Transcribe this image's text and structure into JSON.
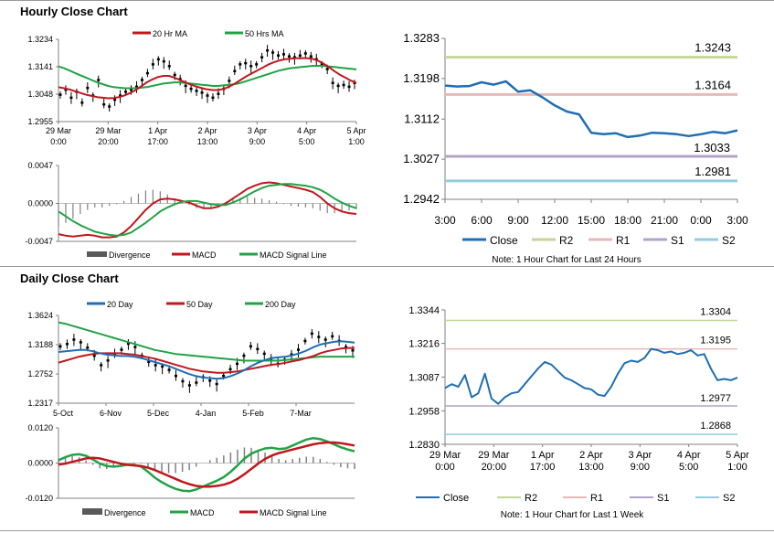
{
  "sections": {
    "hourly_title": "Hourly Close Chart",
    "daily_title": "Daily Close Chart"
  },
  "colors": {
    "ma_short": "#c0171d",
    "ma_long": "#21a345",
    "close_blue": "#1f6eb5",
    "r2": "#c3d69b",
    "r1": "#e6b9b8",
    "s1": "#b3a2c7",
    "s2": "#93cddd",
    "divergence": "#808080",
    "candle": "#000000"
  },
  "chart_data": [
    {
      "id": "hourly_price",
      "type": "line",
      "legend": [
        "20 Hr MA",
        "50 Hrs MA"
      ],
      "yticks": [
        "1.3234",
        "1.3141",
        "1.3048",
        "1.2955"
      ],
      "ylim": [
        1.2955,
        1.3234
      ],
      "xticks": [
        [
          "29 Mar",
          "0:00"
        ],
        [
          "29 Mar",
          "20:00"
        ],
        [
          "1 Apr",
          "17:00"
        ],
        [
          "2 Apr",
          "13:00"
        ],
        [
          "3 Apr",
          "9:00"
        ],
        [
          "4 Apr",
          "5:00"
        ],
        [
          "5 Apr",
          "1:00"
        ]
      ],
      "price": [
        1.3045,
        1.3062,
        1.3035,
        1.3055,
        1.3018,
        1.3068,
        1.3042,
        1.3095,
        1.3012,
        1.3005,
        1.3028,
        1.3042,
        1.3055,
        1.3062,
        1.3072,
        1.3095,
        1.3118,
        1.3148,
        1.3165,
        1.3158,
        1.3142,
        1.3112,
        1.3098,
        1.3075,
        1.3065,
        1.3058,
        1.3052,
        1.3042,
        1.3035,
        1.3048,
        1.3065,
        1.3092,
        1.3125,
        1.3148,
        1.3152,
        1.3142,
        1.3148,
        1.3172,
        1.3195,
        1.3188,
        1.3178,
        1.3182,
        1.3175,
        1.3172,
        1.3178,
        1.3185,
        1.3175,
        1.3165,
        1.3148,
        1.3132,
        1.3085,
        1.3075,
        1.3078,
        1.3072,
        1.3085
      ],
      "ma20": [
        1.3072,
        1.3068,
        1.3064,
        1.3058,
        1.3052,
        1.3046,
        1.3042,
        1.3038,
        1.3036,
        1.3034,
        1.3035,
        1.3038,
        1.3044,
        1.3052,
        1.3062,
        1.3075,
        1.3088,
        1.3098,
        1.3106,
        1.311,
        1.311,
        1.3104,
        1.3096,
        1.3088,
        1.308,
        1.3074,
        1.3068,
        1.3064,
        1.3062,
        1.3062,
        1.3066,
        1.3074,
        1.3084,
        1.3096,
        1.3108,
        1.3118,
        1.3128,
        1.3138,
        1.3148,
        1.3156,
        1.3162,
        1.3166,
        1.3168,
        1.317,
        1.317,
        1.317,
        1.3168,
        1.3162,
        1.3152,
        1.314,
        1.3126,
        1.3114,
        1.3104,
        1.3094,
        1.3086
      ],
      "ma50": [
        1.3142,
        1.3136,
        1.3128,
        1.312,
        1.3112,
        1.3104,
        1.3096,
        1.3088,
        1.3082,
        1.3076,
        1.3072,
        1.307,
        1.3068,
        1.3068,
        1.3068,
        1.307,
        1.3072,
        1.3076,
        1.308,
        1.3084,
        1.3086,
        1.3088,
        1.3088,
        1.3086,
        1.3084,
        1.3082,
        1.308,
        1.3078,
        1.3076,
        1.3076,
        1.3078,
        1.308,
        1.3082,
        1.3086,
        1.3092,
        1.3098,
        1.3104,
        1.311,
        1.3116,
        1.3122,
        1.3128,
        1.3132,
        1.3136,
        1.3138,
        1.314,
        1.3142,
        1.3144,
        1.3144,
        1.3144,
        1.3142,
        1.314,
        1.3138,
        1.3136,
        1.3134,
        1.3132
      ]
    },
    {
      "id": "hourly_macd",
      "type": "line",
      "legend": [
        "Divergence",
        "MACD",
        "MACD Signal Line"
      ],
      "yticks": [
        "0.0047",
        "0.0000",
        "-0.0047"
      ],
      "ylim": [
        -0.0047,
        0.0047
      ],
      "macd": [
        -0.0038,
        -0.004,
        -0.0041,
        -0.004,
        -0.0039,
        -0.004,
        -0.0042,
        -0.0042,
        -0.0041,
        -0.0036,
        -0.0028,
        -0.0018,
        -0.0008,
        0.0,
        0.0005,
        0.0006,
        0.0005,
        0.0003,
        0.0001,
        -0.0003,
        -0.0006,
        -0.0006,
        -0.0004,
        0.0,
        0.0006,
        0.0012,
        0.0018,
        0.0022,
        0.0025,
        0.0026,
        0.0025,
        0.0023,
        0.0021,
        0.0019,
        0.0017,
        0.0014,
        0.0008,
        0.0,
        -0.0006,
        -0.001,
        -0.0012,
        -0.0013
      ],
      "signal": [
        -0.001,
        -0.0016,
        -0.0022,
        -0.0027,
        -0.0031,
        -0.0035,
        -0.0037,
        -0.0039,
        -0.004,
        -0.0039,
        -0.0036,
        -0.003,
        -0.0024,
        -0.0017,
        -0.001,
        -0.0005,
        -0.0001,
        0.0002,
        0.0003,
        0.0003,
        0.0001,
        -0.0001,
        -0.0002,
        -0.0002,
        0.0001,
        0.0005,
        0.001,
        0.0015,
        0.0019,
        0.0022,
        0.0023,
        0.0024,
        0.0024,
        0.0023,
        0.0022,
        0.002,
        0.0017,
        0.0012,
        0.0006,
        0.0001,
        -0.0003,
        -0.0006
      ]
    },
    {
      "id": "hourly_levels",
      "type": "line",
      "yticks": [
        "1.3283",
        "1.3198",
        "1.3112",
        "1.3027",
        "1.2942"
      ],
      "ylim": [
        1.2942,
        1.3283
      ],
      "xticks": [
        "3:00",
        "6:00",
        "9:00",
        "12:00",
        "15:00",
        "18:00",
        "21:00",
        "0:00",
        "3:00"
      ],
      "close": [
        1.3183,
        1.3181,
        1.3182,
        1.319,
        1.3185,
        1.3192,
        1.317,
        1.3173,
        1.3158,
        1.3141,
        1.3128,
        1.3122,
        1.3083,
        1.308,
        1.3082,
        1.3074,
        1.3077,
        1.3083,
        1.3082,
        1.308,
        1.3076,
        1.308,
        1.3085,
        1.3082,
        1.3088
      ],
      "levels": {
        "R2": 1.3243,
        "R1": 1.3164,
        "S1": 1.3033,
        "S2": 1.2981
      },
      "level_labels": {
        "R2": "1.3243",
        "R1": "1.3164",
        "S1": "1.3033",
        "S2": "1.2981"
      },
      "legend": [
        "Close",
        "R2",
        "R1",
        "S1",
        "S2"
      ],
      "note": "Note: 1 Hour Chart for Last 24 Hours"
    },
    {
      "id": "daily_price",
      "type": "line",
      "legend": [
        "20 Day",
        "50 Day",
        "200 Day"
      ],
      "yticks": [
        "1.3624",
        "1.3188",
        "1.2752",
        "1.2317"
      ],
      "ylim": [
        1.2317,
        1.3624
      ],
      "xticks": [
        "5-Oct",
        "6-Nov",
        "5-Dec",
        "4-Jan",
        "5-Feb",
        "7-Mar"
      ],
      "price": [
        1.316,
        1.3195,
        1.326,
        1.322,
        1.314,
        1.302,
        1.288,
        1.295,
        1.304,
        1.311,
        1.32,
        1.315,
        1.302,
        1.293,
        1.288,
        1.286,
        1.281,
        1.272,
        1.264,
        1.258,
        1.262,
        1.27,
        1.265,
        1.26,
        1.272,
        1.282,
        1.29,
        1.302,
        1.316,
        1.312,
        1.305,
        1.298,
        1.29,
        1.296,
        1.304,
        1.311,
        1.324,
        1.335,
        1.33,
        1.326,
        1.331,
        1.324,
        1.315,
        1.31
      ],
      "ma20": [
        1.308,
        1.309,
        1.31,
        1.311,
        1.311,
        1.309,
        1.306,
        1.304,
        1.303,
        1.302,
        1.302,
        1.301,
        1.299,
        1.296,
        1.293,
        1.29,
        1.287,
        1.283,
        1.279,
        1.275,
        1.272,
        1.27,
        1.269,
        1.268,
        1.269,
        1.272,
        1.276,
        1.281,
        1.287,
        1.292,
        1.296,
        1.299,
        1.3,
        1.301,
        1.303,
        1.306,
        1.31,
        1.315,
        1.319,
        1.321,
        1.323,
        1.324,
        1.323,
        1.322
      ],
      "ma50": [
        1.292,
        1.295,
        1.298,
        1.301,
        1.303,
        1.305,
        1.306,
        1.306,
        1.306,
        1.306,
        1.305,
        1.304,
        1.302,
        1.3,
        1.298,
        1.295,
        1.292,
        1.289,
        1.286,
        1.283,
        1.281,
        1.279,
        1.278,
        1.277,
        1.277,
        1.278,
        1.279,
        1.281,
        1.283,
        1.285,
        1.287,
        1.289,
        1.29,
        1.292,
        1.294,
        1.296,
        1.299,
        1.302,
        1.306,
        1.309,
        1.311,
        1.313,
        1.314,
        1.314
      ],
      "ma200": [
        1.352,
        1.35,
        1.347,
        1.344,
        1.341,
        1.338,
        1.335,
        1.332,
        1.329,
        1.326,
        1.323,
        1.32,
        1.317,
        1.314,
        1.311,
        1.309,
        1.307,
        1.305,
        1.304,
        1.303,
        1.302,
        1.301,
        1.3,
        1.299,
        1.298,
        1.297,
        1.296,
        1.295,
        1.295,
        1.295,
        1.295,
        1.295,
        1.295,
        1.296,
        1.297,
        1.298,
        1.299,
        1.3,
        1.301,
        1.301,
        1.301,
        1.301,
        1.301,
        1.301
      ]
    },
    {
      "id": "daily_macd",
      "type": "line",
      "legend": [
        "Divergence",
        "MACD",
        "MACD Signal Line"
      ],
      "yticks": [
        "0.0120",
        "0.0000",
        "-0.0120"
      ],
      "ylim": [
        -0.012,
        0.012
      ],
      "macd": [
        0.001,
        0.002,
        0.0028,
        0.003,
        0.0025,
        0.0012,
        -0.0002,
        -0.001,
        -0.0012,
        -0.001,
        -0.0006,
        -0.0006,
        -0.0012,
        -0.003,
        -0.005,
        -0.0065,
        -0.0078,
        -0.0088,
        -0.0094,
        -0.0096,
        -0.009,
        -0.008,
        -0.007,
        -0.006,
        -0.0048,
        -0.003,
        -0.0008,
        0.0015,
        0.0032,
        0.0042,
        0.005,
        0.0052,
        0.0048,
        0.005,
        0.006,
        0.007,
        0.008,
        0.0085,
        0.0082,
        0.0074,
        0.0064,
        0.0054,
        0.0046,
        0.004
      ],
      "signal": [
        -0.0005,
        -0.0002,
        0.0004,
        0.001,
        0.0016,
        0.0018,
        0.0016,
        0.001,
        0.0004,
        -0.0002,
        -0.0006,
        -0.0008,
        -0.001,
        -0.0016,
        -0.0024,
        -0.0034,
        -0.0044,
        -0.0054,
        -0.0064,
        -0.0072,
        -0.0078,
        -0.008,
        -0.008,
        -0.0078,
        -0.0074,
        -0.0066,
        -0.0054,
        -0.0038,
        -0.002,
        -0.0002,
        0.0014,
        0.0026,
        0.0034,
        0.004,
        0.0046,
        0.0052,
        0.0058,
        0.0064,
        0.0068,
        0.007,
        0.007,
        0.0068,
        0.0064,
        0.006
      ]
    },
    {
      "id": "daily_levels",
      "type": "line",
      "yticks": [
        "1.3344",
        "1.3216",
        "1.3087",
        "1.2958",
        "1.2830"
      ],
      "ylim": [
        1.283,
        1.3344
      ],
      "xticks": [
        [
          "29 Mar",
          "0:00"
        ],
        [
          "29 Mar",
          "20:00"
        ],
        [
          "1 Apr",
          "17:00"
        ],
        [
          "2 Apr",
          "13:00"
        ],
        [
          "3 Apr",
          "9:00"
        ],
        [
          "4 Apr",
          "5:00"
        ],
        [
          "5 Apr",
          "1:00"
        ]
      ],
      "close": [
        1.3045,
        1.306,
        1.305,
        1.3095,
        1.301,
        1.3025,
        1.31,
        1.3005,
        1.2985,
        1.301,
        1.3025,
        1.303,
        1.306,
        1.309,
        1.312,
        1.3145,
        1.3135,
        1.311,
        1.3085,
        1.3075,
        1.306,
        1.3045,
        1.304,
        1.302,
        1.3015,
        1.305,
        1.31,
        1.314,
        1.315,
        1.3145,
        1.316,
        1.3195,
        1.319,
        1.318,
        1.3185,
        1.3175,
        1.318,
        1.319,
        1.317,
        1.3175,
        1.312,
        1.3075,
        1.308,
        1.3075,
        1.3085
      ],
      "levels": {
        "R2": 1.3304,
        "R1": 1.3195,
        "S1": 1.2977,
        "S2": 1.2868
      },
      "level_labels": {
        "R2": "1.3304",
        "R1": "1.3195",
        "S1": "1.2977",
        "S2": "1.2868"
      },
      "legend": [
        "Close",
        "R2",
        "R1",
        "S1",
        "S2"
      ],
      "note": "Note: 1 Hour Chart for Last 1 Week"
    }
  ]
}
